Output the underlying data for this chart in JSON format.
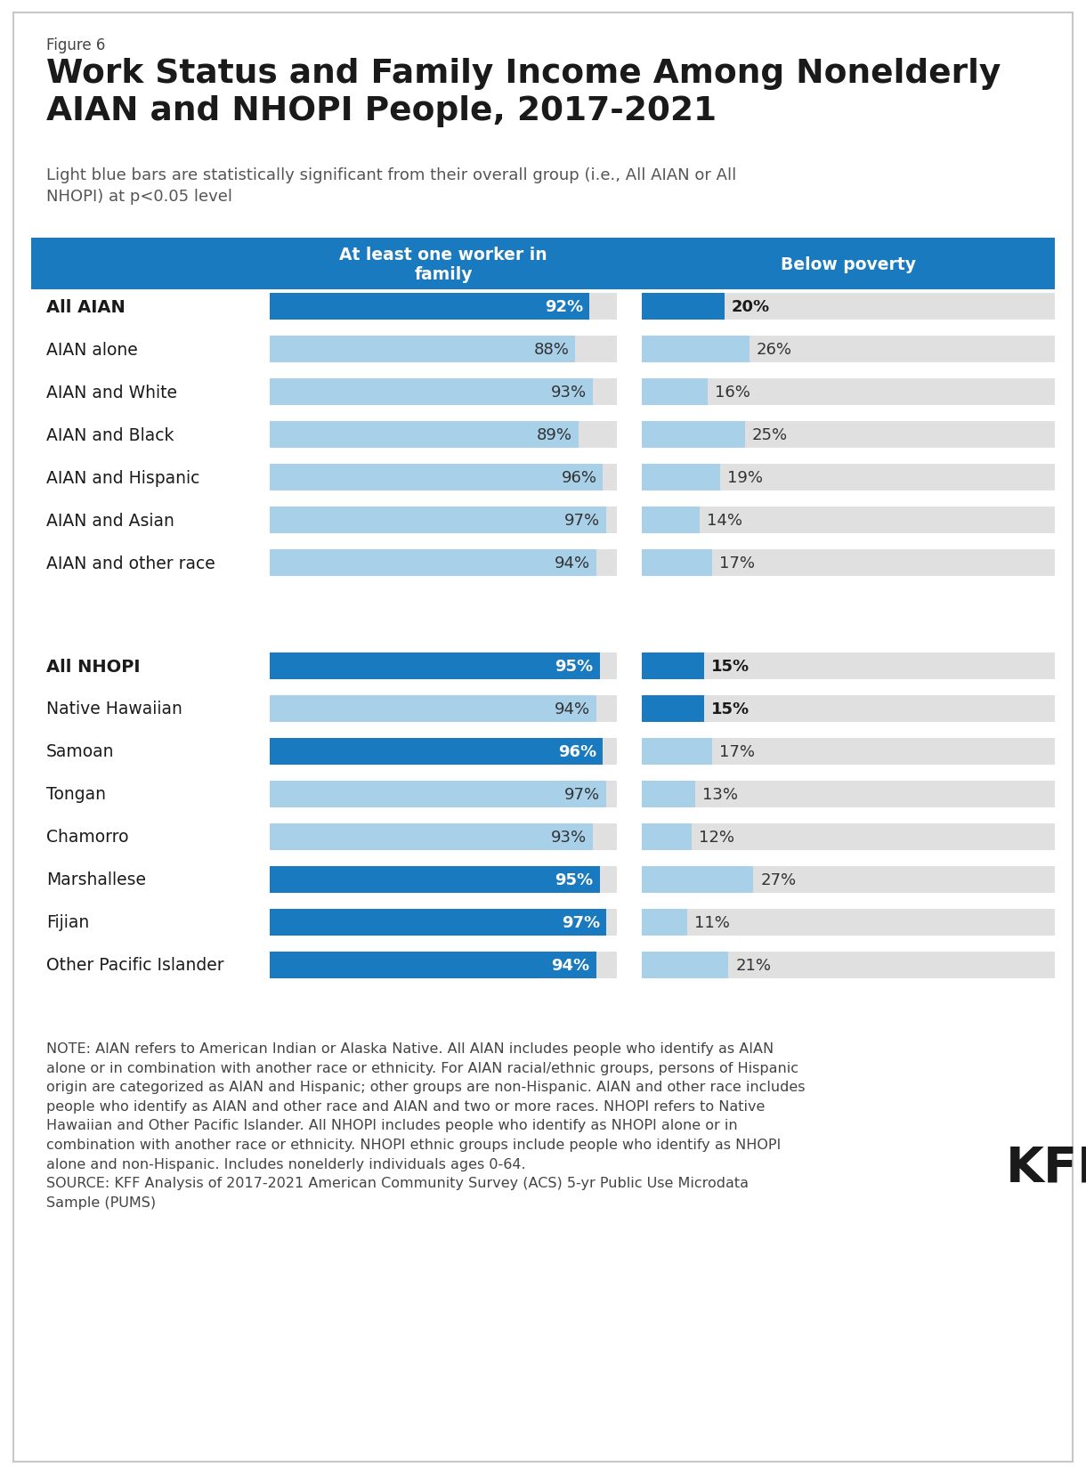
{
  "figure_label": "Figure 6",
  "title": "Work Status and Family Income Among Nonelderly\nAIAN and NHOPI People, 2017-2021",
  "subtitle": "Light blue bars are statistically significant from their overall group (i.e., All AIAN or All\nNHOPI) at p<0.05 level",
  "col1_header": "At least one worker in\nfamily",
  "col2_header": "Below poverty",
  "header_bg": "#1a7abf",
  "header_text_color": "#ffffff",
  "dark_blue": "#1a7abf",
  "light_blue": "#a8d0e8",
  "bar_bg": "#e0e0e0",
  "aian_rows": [
    {
      "label": "All AIAN",
      "bold": true,
      "worker": 92,
      "worker_dark": true,
      "poverty": 20,
      "poverty_dark": true
    },
    {
      "label": "AIAN alone",
      "bold": false,
      "worker": 88,
      "worker_dark": false,
      "poverty": 26,
      "poverty_dark": false
    },
    {
      "label": "AIAN and White",
      "bold": false,
      "worker": 93,
      "worker_dark": false,
      "poverty": 16,
      "poverty_dark": false
    },
    {
      "label": "AIAN and Black",
      "bold": false,
      "worker": 89,
      "worker_dark": false,
      "poverty": 25,
      "poverty_dark": false
    },
    {
      "label": "AIAN and Hispanic",
      "bold": false,
      "worker": 96,
      "worker_dark": false,
      "poverty": 19,
      "poverty_dark": false
    },
    {
      "label": "AIAN and Asian",
      "bold": false,
      "worker": 97,
      "worker_dark": false,
      "poverty": 14,
      "poverty_dark": false
    },
    {
      "label": "AIAN and other race",
      "bold": false,
      "worker": 94,
      "worker_dark": false,
      "poverty": 17,
      "poverty_dark": false
    }
  ],
  "nhopi_rows": [
    {
      "label": "All NHOPI",
      "bold": true,
      "worker": 95,
      "worker_dark": true,
      "poverty": 15,
      "poverty_dark": true
    },
    {
      "label": "Native Hawaiian",
      "bold": false,
      "worker": 94,
      "worker_dark": false,
      "poverty": 15,
      "poverty_dark": true
    },
    {
      "label": "Samoan",
      "bold": false,
      "worker": 96,
      "worker_dark": true,
      "poverty": 17,
      "poverty_dark": false
    },
    {
      "label": "Tongan",
      "bold": false,
      "worker": 97,
      "worker_dark": false,
      "poverty": 13,
      "poverty_dark": false
    },
    {
      "label": "Chamorro",
      "bold": false,
      "worker": 93,
      "worker_dark": false,
      "poverty": 12,
      "poverty_dark": false
    },
    {
      "label": "Marshallese",
      "bold": false,
      "worker": 95,
      "worker_dark": true,
      "poverty": 27,
      "poverty_dark": false
    },
    {
      "label": "Fijian",
      "bold": false,
      "worker": 97,
      "worker_dark": true,
      "poverty": 11,
      "poverty_dark": false
    },
    {
      "label": "Other Pacific Islander",
      "bold": false,
      "worker": 94,
      "worker_dark": true,
      "poverty": 21,
      "poverty_dark": false
    }
  ],
  "note_text": "NOTE: AIAN refers to American Indian or Alaska Native. All AIAN includes people who identify as AIAN\nalone or in combination with another race or ethnicity. For AIAN racial/ethnic groups, persons of Hispanic\norigin are categorized as AIAN and Hispanic; other groups are non-Hispanic. AIAN and other race includes\npeople who identify as AIAN and other race and AIAN and two or more races. NHOPI refers to Native\nHawaiian and Other Pacific Islander. All NHOPI includes people who identify as NHOPI alone or in\ncombination with another race or ethnicity. NHOPI ethnic groups include people who identify as NHOPI\nalone and non-Hispanic. Includes nonelderly individuals ages 0-64.\nSOURCE: KFF Analysis of 2017-2021 American Community Survey (ACS) 5-yr Public Use Microdata\nSample (PUMS)",
  "bg_color": "#ffffff",
  "border_color": "#c8c8c8"
}
